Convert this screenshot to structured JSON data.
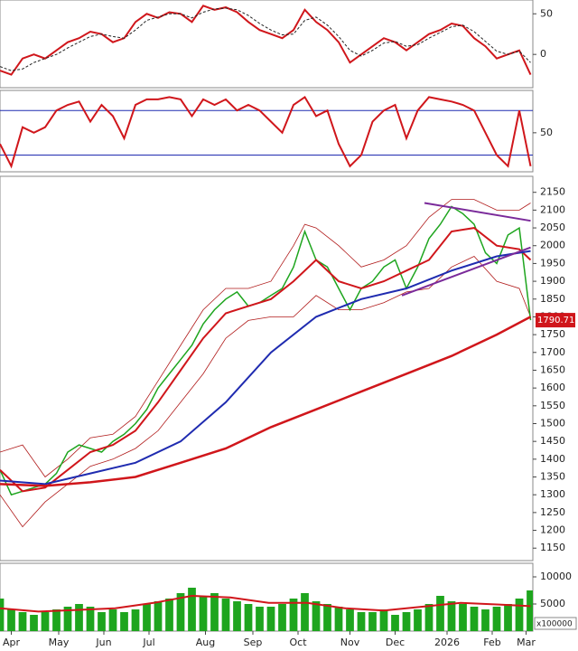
{
  "chart_data": [
    {
      "type": "line",
      "xlim": [
        0,
        236
      ],
      "ylim": [
        -41,
        67
      ],
      "yticks": [
        0,
        50
      ],
      "grid": false,
      "series": [
        {
          "color": "#d0161b",
          "width": 2,
          "x": [
            0,
            5,
            10,
            15,
            20,
            25,
            30,
            35,
            40,
            45,
            50,
            55,
            60,
            65,
            70,
            75,
            80,
            85,
            90,
            95,
            100,
            105,
            110,
            115,
            120,
            125,
            130,
            135,
            140,
            145,
            150,
            155,
            160,
            165,
            170,
            175,
            180,
            185,
            190,
            195,
            200,
            205,
            210,
            215,
            220,
            225,
            230,
            235
          ],
          "values": [
            -20,
            -25,
            -5,
            0,
            -5,
            5,
            15,
            20,
            28,
            25,
            15,
            20,
            40,
            50,
            45,
            52,
            50,
            40,
            60,
            55,
            58,
            52,
            40,
            30,
            25,
            20,
            30,
            55,
            40,
            30,
            15,
            -10,
            0,
            10,
            20,
            15,
            5,
            15,
            25,
            30,
            38,
            35,
            20,
            10,
            -5,
            0,
            5,
            -25
          ]
        },
        {
          "color": "#222222",
          "width": 1,
          "dash": true,
          "x": [
            0,
            5,
            10,
            15,
            20,
            25,
            30,
            35,
            40,
            45,
            50,
            55,
            60,
            65,
            70,
            75,
            80,
            85,
            90,
            95,
            100,
            105,
            110,
            115,
            120,
            125,
            130,
            135,
            140,
            145,
            150,
            155,
            160,
            165,
            170,
            175,
            180,
            185,
            190,
            195,
            200,
            205,
            210,
            215,
            220,
            225,
            230,
            235
          ],
          "values": [
            -15,
            -20,
            -18,
            -10,
            -5,
            0,
            8,
            15,
            22,
            25,
            22,
            20,
            30,
            42,
            46,
            50,
            50,
            45,
            52,
            56,
            57,
            55,
            48,
            38,
            30,
            24,
            25,
            42,
            46,
            36,
            22,
            5,
            -2,
            5,
            14,
            16,
            10,
            12,
            20,
            27,
            34,
            36,
            28,
            16,
            4,
            0,
            4,
            -10
          ]
        }
      ]
    },
    {
      "type": "line",
      "xlim": [
        0,
        236
      ],
      "ylim": [
        15,
        88
      ],
      "yticks": [
        50
      ],
      "hlines": [
        30,
        70
      ],
      "grid": false,
      "series": [
        {
          "color": "#d0161b",
          "width": 2,
          "x": [
            0,
            5,
            10,
            15,
            20,
            25,
            30,
            35,
            40,
            45,
            50,
            55,
            60,
            65,
            70,
            75,
            80,
            85,
            90,
            95,
            100,
            105,
            110,
            115,
            120,
            125,
            130,
            135,
            140,
            145,
            150,
            155,
            160,
            165,
            170,
            175,
            180,
            185,
            190,
            195,
            200,
            205,
            210,
            215,
            220,
            225,
            230,
            235
          ],
          "values": [
            40,
            20,
            55,
            50,
            55,
            70,
            75,
            78,
            60,
            75,
            65,
            45,
            75,
            80,
            80,
            82,
            80,
            65,
            80,
            75,
            80,
            70,
            75,
            70,
            60,
            50,
            75,
            82,
            65,
            70,
            40,
            20,
            30,
            60,
            70,
            75,
            45,
            70,
            82,
            80,
            78,
            75,
            70,
            50,
            30,
            20,
            70,
            20
          ]
        }
      ]
    },
    {
      "type": "line",
      "xlim": [
        0,
        236
      ],
      "ylim": [
        1115,
        2195
      ],
      "yticks": [
        1150,
        1200,
        1250,
        1300,
        1350,
        1400,
        1450,
        1500,
        1550,
        1600,
        1650,
        1700,
        1750,
        1800,
        1850,
        1900,
        1950,
        2000,
        2050,
        2100,
        2150
      ],
      "last_value": 1790.71,
      "series": [
        {
          "color": "#b01a1a",
          "width": 0.8,
          "x": [
            0,
            10,
            20,
            30,
            40,
            50,
            60,
            70,
            80,
            90,
            100,
            110,
            120,
            130,
            135,
            140,
            150,
            160,
            170,
            180,
            190,
            200,
            210,
            220,
            230,
            235
          ],
          "values": [
            1420,
            1440,
            1350,
            1400,
            1460,
            1470,
            1520,
            1620,
            1720,
            1820,
            1880,
            1880,
            1900,
            2000,
            2060,
            2050,
            2000,
            1940,
            1960,
            2000,
            2080,
            2130,
            2130,
            2100,
            2100,
            2120
          ]
        },
        {
          "color": "#b01a1a",
          "width": 0.8,
          "x": [
            0,
            10,
            20,
            30,
            40,
            50,
            60,
            70,
            80,
            90,
            100,
            110,
            120,
            130,
            140,
            150,
            160,
            170,
            180,
            190,
            200,
            210,
            220,
            230,
            235
          ],
          "values": [
            1300,
            1210,
            1280,
            1330,
            1380,
            1400,
            1430,
            1480,
            1560,
            1640,
            1740,
            1790,
            1800,
            1800,
            1860,
            1820,
            1820,
            1840,
            1870,
            1880,
            1940,
            1970,
            1900,
            1880,
            1800
          ]
        },
        {
          "color": "#1ea51e",
          "width": 1.5,
          "x": [
            0,
            5,
            10,
            15,
            20,
            25,
            30,
            35,
            40,
            45,
            50,
            55,
            60,
            65,
            70,
            75,
            80,
            85,
            90,
            95,
            100,
            105,
            110,
            115,
            120,
            125,
            130,
            135,
            140,
            145,
            150,
            155,
            160,
            165,
            170,
            175,
            180,
            185,
            190,
            195,
            200,
            205,
            210,
            215,
            220,
            225,
            230,
            235
          ],
          "values": [
            1370,
            1300,
            1310,
            1320,
            1330,
            1360,
            1420,
            1440,
            1430,
            1420,
            1450,
            1470,
            1500,
            1540,
            1600,
            1640,
            1680,
            1720,
            1780,
            1820,
            1850,
            1870,
            1830,
            1840,
            1860,
            1880,
            1940,
            2040,
            1960,
            1940,
            1880,
            1820,
            1880,
            1900,
            1940,
            1960,
            1880,
            1940,
            2020,
            2060,
            2110,
            2090,
            2060,
            1980,
            1950,
            2030,
            2050,
            1790.71
          ]
        },
        {
          "color": "#d0161b",
          "width": 2,
          "x": [
            0,
            10,
            20,
            30,
            40,
            50,
            60,
            70,
            80,
            90,
            100,
            110,
            120,
            130,
            140,
            150,
            160,
            170,
            180,
            190,
            200,
            210,
            220,
            230,
            235
          ],
          "values": [
            1370,
            1310,
            1320,
            1370,
            1420,
            1440,
            1480,
            1560,
            1650,
            1740,
            1810,
            1830,
            1850,
            1900,
            1960,
            1900,
            1880,
            1900,
            1930,
            1960,
            2040,
            2050,
            2000,
            1990,
            1960
          ]
        },
        {
          "color": "#1f2bb0",
          "width": 2,
          "x": [
            0,
            20,
            40,
            60,
            80,
            100,
            120,
            140,
            160,
            180,
            200,
            220,
            235
          ],
          "values": [
            1340,
            1330,
            1360,
            1390,
            1450,
            1560,
            1700,
            1800,
            1850,
            1880,
            1930,
            1970,
            1985
          ]
        },
        {
          "color": "#d0161b",
          "width": 2.5,
          "x": [
            0,
            20,
            40,
            60,
            80,
            100,
            120,
            140,
            160,
            180,
            200,
            220,
            235
          ],
          "values": [
            1330,
            1325,
            1335,
            1350,
            1390,
            1430,
            1490,
            1540,
            1590,
            1640,
            1690,
            1750,
            1800
          ]
        },
        {
          "color": "#7a2a9a",
          "width": 2,
          "x": [
            188,
            235
          ],
          "values": [
            2120,
            2070
          ]
        },
        {
          "color": "#7a2a9a",
          "width": 2,
          "x": [
            178,
            235
          ],
          "values": [
            1860,
            1995
          ]
        }
      ]
    },
    {
      "type": "bar",
      "xlim": [
        0,
        236
      ],
      "ylim": [
        0,
        12500
      ],
      "yticks": [
        5000,
        10000
      ],
      "color": "#1ea51e",
      "unit_label": "x100000",
      "x": [
        0,
        5,
        10,
        15,
        20,
        25,
        30,
        35,
        40,
        45,
        50,
        55,
        60,
        65,
        70,
        75,
        80,
        85,
        90,
        95,
        100,
        105,
        110,
        115,
        120,
        125,
        130,
        135,
        140,
        145,
        150,
        155,
        160,
        165,
        170,
        175,
        180,
        185,
        190,
        195,
        200,
        205,
        210,
        215,
        220,
        225,
        230,
        235
      ],
      "values": [
        6000,
        4000,
        3500,
        3000,
        3500,
        4000,
        4500,
        5000,
        4500,
        3500,
        4000,
        3500,
        4000,
        5000,
        5500,
        6000,
        7000,
        8000,
        6500,
        7000,
        6000,
        5500,
        5000,
        4500,
        4500,
        5000,
        6000,
        7000,
        5500,
        5000,
        4500,
        4000,
        3500,
        3500,
        4000,
        3000,
        3500,
        4000,
        5000,
        6500,
        5500,
        5000,
        4500,
        4000,
        4500,
        5000,
        6000,
        7500
      ],
      "xticks": [
        {
          "value": 5,
          "label": "Apr"
        },
        {
          "value": 26,
          "label": "May"
        },
        {
          "value": 46,
          "label": "Jun"
        },
        {
          "value": 66,
          "label": "Jul"
        },
        {
          "value": 91,
          "label": "Aug"
        },
        {
          "value": 112,
          "label": "Sep"
        },
        {
          "value": 132,
          "label": "Oct"
        },
        {
          "value": 155,
          "label": "Nov"
        },
        {
          "value": 175,
          "label": "Dec"
        },
        {
          "value": 198,
          "label": "2026"
        },
        {
          "value": 218,
          "label": "Feb"
        },
        {
          "value": 233,
          "label": "Mar"
        }
      ],
      "series": [
        {
          "color": "#d0161b",
          "width": 2,
          "x": [
            0,
            17,
            34,
            51,
            68,
            85,
            102,
            119,
            136,
            153,
            170,
            187,
            204,
            221,
            235
          ],
          "values": [
            4200,
            3600,
            3900,
            4200,
            5200,
            6500,
            6200,
            5200,
            5200,
            4200,
            3800,
            4500,
            5200,
            4900,
            4600
          ]
        }
      ]
    }
  ]
}
